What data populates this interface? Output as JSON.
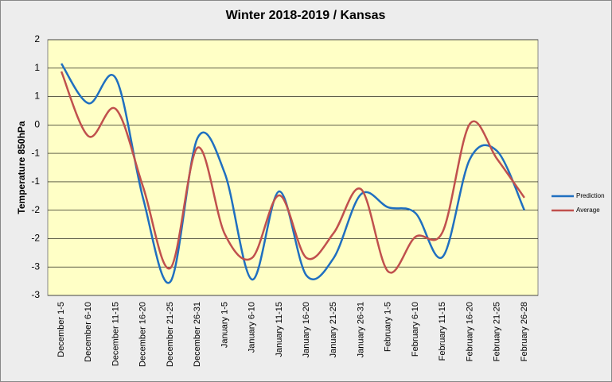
{
  "chart_data": {
    "type": "line",
    "title": "Winter 2018-2019 / Kansas",
    "ylabel": "Temperature 850hPa",
    "categories": [
      "December 1-5",
      "December 6-10",
      "December 11-15",
      "December 16-20",
      "December 21-25",
      "December 26-31",
      "January 1-5",
      "January 6-10",
      "January 11-15",
      "January 16-20",
      "January 21-25",
      "January 26-31",
      "February 1-5",
      "February 6-10",
      "February 11-15",
      "February 16-20",
      "February 21-25",
      "February 26-28"
    ],
    "series": [
      {
        "name": "Prediction",
        "color": "#1f6fc0",
        "values": [
          1.08,
          0.38,
          0.82,
          -1.29,
          -2.76,
          -0.23,
          -0.85,
          -2.72,
          -1.17,
          -2.65,
          -2.34,
          -1.22,
          -1.45,
          -1.55,
          -2.32,
          -0.6,
          -0.46,
          -1.5
        ]
      },
      {
        "name": "Average",
        "color": "#c0504d",
        "values": [
          0.94,
          -0.2,
          0.28,
          -1.09,
          -2.52,
          -0.4,
          -1.92,
          -2.34,
          -1.24,
          -2.34,
          -1.9,
          -1.13,
          -2.58,
          -1.97,
          -1.88,
          0.02,
          -0.6,
          -1.28
        ]
      }
    ],
    "ylim": [
      -3,
      1.5
    ],
    "yticks": [
      -3,
      {
        "value": -2.5,
        "label": "-3"
      },
      -2,
      {
        "value": -1.5,
        "label": "-2"
      },
      -1,
      {
        "value": -0.5,
        "label": "-1"
      },
      0,
      {
        "value": 0.5,
        "label": "1"
      },
      1,
      {
        "value": 1.5,
        "label": "2"
      }
    ],
    "grid": true,
    "smooth": true,
    "legend": "right"
  }
}
